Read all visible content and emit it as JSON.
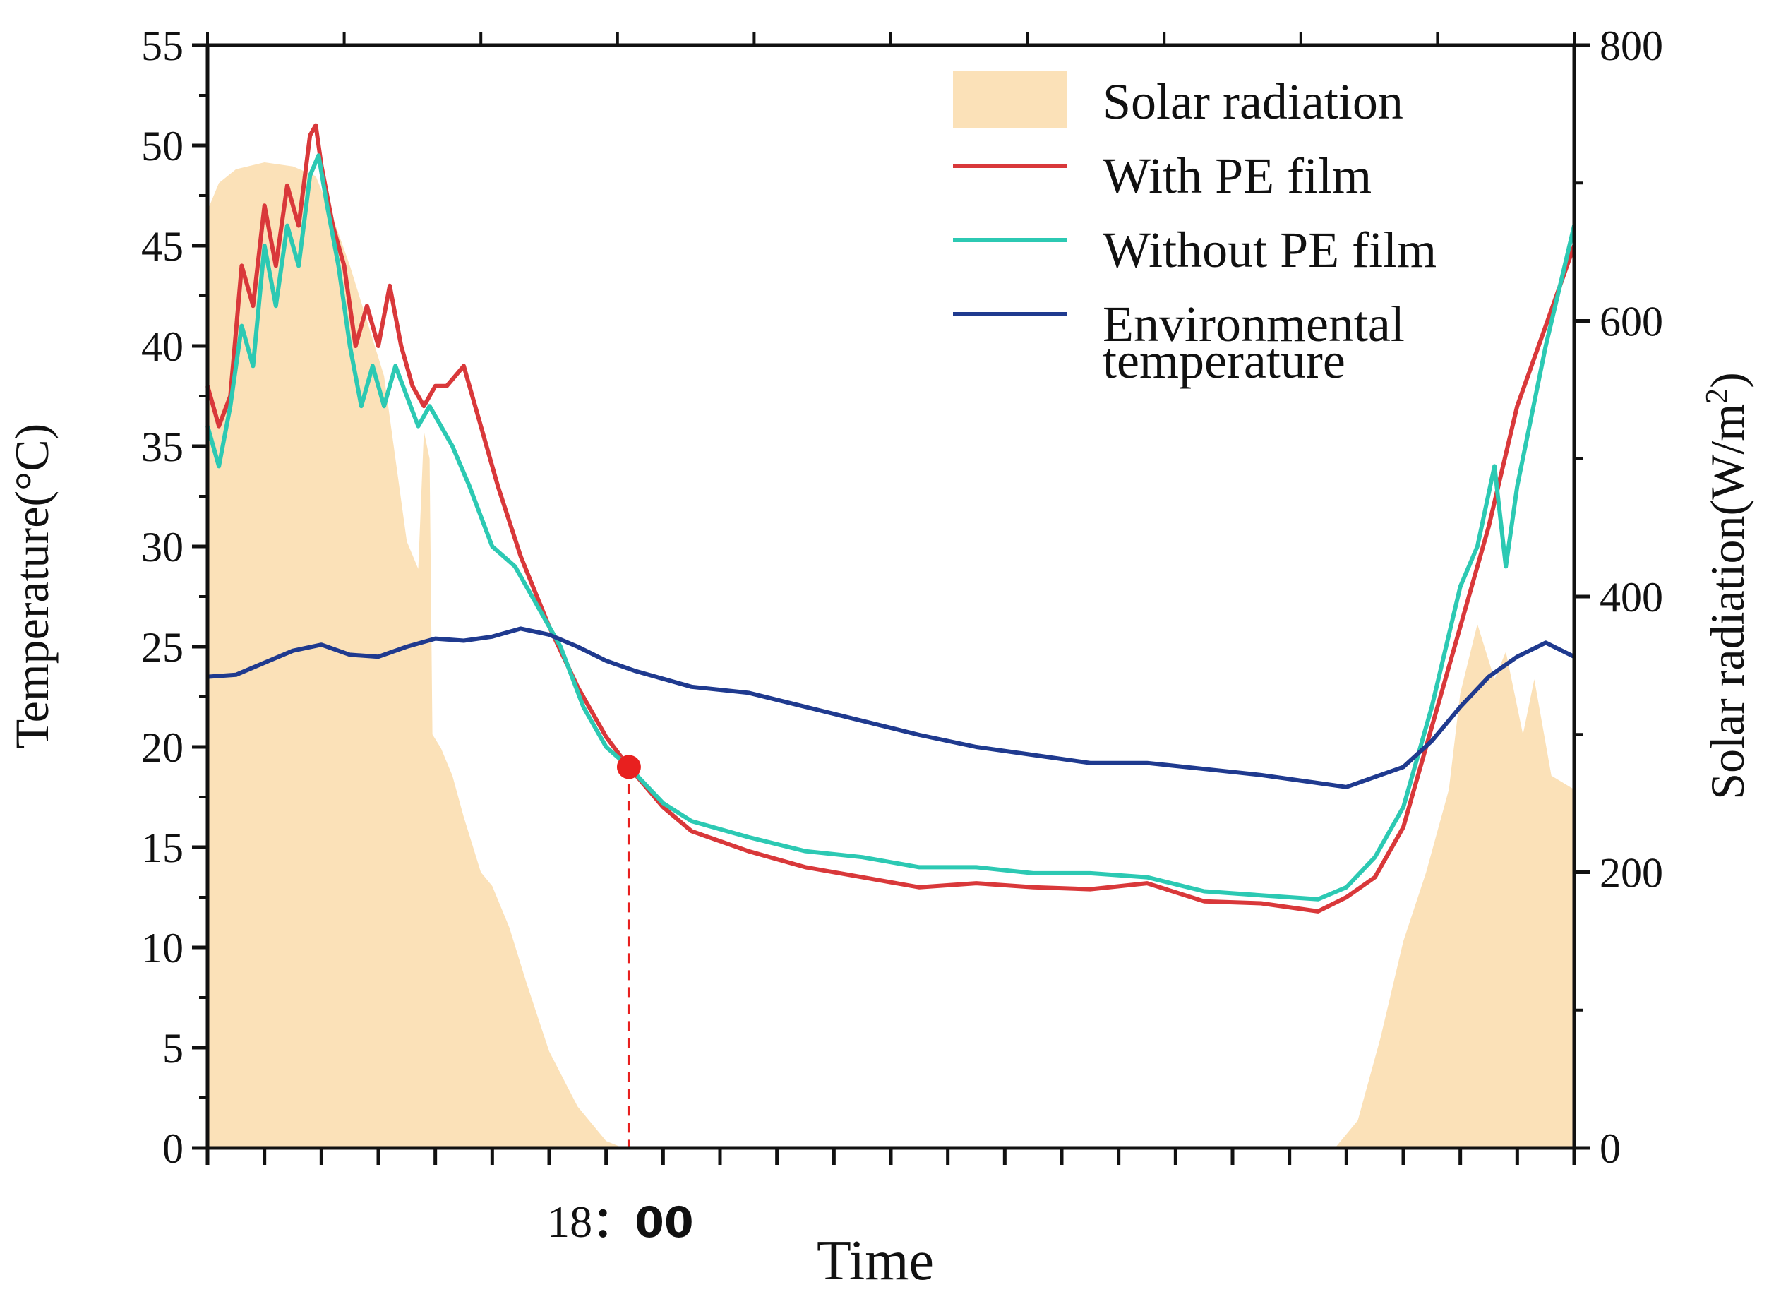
{
  "chart_data": {
    "type": "line",
    "title": "",
    "xlabel": "Time",
    "ylabel": "Temperature(°C)",
    "y2label": "Solar radiation(W/m²)",
    "ylim": [
      0,
      55
    ],
    "y2lim": [
      0,
      800
    ],
    "y_ticks": [
      0,
      5,
      10,
      15,
      20,
      25,
      30,
      35,
      40,
      45,
      50,
      55
    ],
    "y2_ticks": [
      0,
      200,
      400,
      600,
      800
    ],
    "x_units": "hours since start (start ≈ 11:00)",
    "xlim": [
      0,
      24
    ],
    "x_tick_labels": [
      {
        "x": 7.4,
        "text": "18",
        "sep": "：",
        "suffix": "00"
      }
    ],
    "legend": {
      "placement": "top-right",
      "entries": [
        {
          "label": "Solar radiation",
          "kind": "area",
          "color": "#fbe1b8"
        },
        {
          "label": "With PE film",
          "kind": "line",
          "color": "#d9383a"
        },
        {
          "label": "Without PE film",
          "kind": "line",
          "color": "#2cc9b3"
        },
        {
          "label": "Environmental temperature",
          "lines": [
            "Environmental",
            "temperature"
          ],
          "kind": "line",
          "color": "#1f3a8f"
        }
      ]
    },
    "annotation": {
      "label": "intersection point",
      "x": 7.4,
      "y": 19.0,
      "color": "#e8201f",
      "style": "dashed vertical line to x-axis"
    },
    "series": [
      {
        "name": "Solar radiation",
        "axis": "right",
        "type": "area",
        "color": "#fbe1b8",
        "points": [
          [
            0,
            680
          ],
          [
            0.2,
            700
          ],
          [
            0.5,
            710
          ],
          [
            1,
            715
          ],
          [
            1.5,
            712
          ],
          [
            1.9,
            705
          ],
          [
            2.2,
            675
          ],
          [
            2.5,
            640
          ],
          [
            2.8,
            600
          ],
          [
            3.1,
            560
          ],
          [
            3.3,
            500
          ],
          [
            3.5,
            440
          ],
          [
            3.7,
            420
          ],
          [
            3.8,
            520
          ],
          [
            3.9,
            500
          ],
          [
            3.95,
            300
          ],
          [
            4.1,
            290
          ],
          [
            4.3,
            270
          ],
          [
            4.5,
            240
          ],
          [
            4.8,
            200
          ],
          [
            5.0,
            190
          ],
          [
            5.3,
            160
          ],
          [
            5.6,
            120
          ],
          [
            6.0,
            70
          ],
          [
            6.5,
            30
          ],
          [
            7.0,
            5
          ],
          [
            7.3,
            0
          ],
          [
            19.8,
            0
          ],
          [
            20.2,
            20
          ],
          [
            20.6,
            80
          ],
          [
            21.0,
            150
          ],
          [
            21.4,
            200
          ],
          [
            21.8,
            260
          ],
          [
            22.0,
            330
          ],
          [
            22.3,
            380
          ],
          [
            22.6,
            340
          ],
          [
            22.8,
            360
          ],
          [
            23.1,
            300
          ],
          [
            23.3,
            340
          ],
          [
            23.6,
            270
          ],
          [
            24,
            260
          ]
        ]
      },
      {
        "name": "With PE film",
        "axis": "left",
        "type": "line",
        "color": "#d9383a",
        "points": [
          [
            0,
            38
          ],
          [
            0.2,
            36
          ],
          [
            0.4,
            37.5
          ],
          [
            0.6,
            44
          ],
          [
            0.8,
            42
          ],
          [
            1.0,
            47
          ],
          [
            1.2,
            44
          ],
          [
            1.4,
            48
          ],
          [
            1.6,
            46
          ],
          [
            1.8,
            50.5
          ],
          [
            1.9,
            51
          ],
          [
            2.0,
            49
          ],
          [
            2.2,
            46
          ],
          [
            2.4,
            44
          ],
          [
            2.6,
            40
          ],
          [
            2.8,
            42
          ],
          [
            3.0,
            40
          ],
          [
            3.2,
            43
          ],
          [
            3.4,
            40
          ],
          [
            3.6,
            38
          ],
          [
            3.8,
            37
          ],
          [
            4.0,
            38
          ],
          [
            4.2,
            38
          ],
          [
            4.5,
            39
          ],
          [
            4.8,
            36
          ],
          [
            5.1,
            33
          ],
          [
            5.5,
            29.5
          ],
          [
            6.0,
            26
          ],
          [
            6.5,
            23
          ],
          [
            7.0,
            20.5
          ],
          [
            7.4,
            19.0
          ],
          [
            8.0,
            17
          ],
          [
            8.5,
            15.8
          ],
          [
            9.5,
            14.8
          ],
          [
            10.5,
            14
          ],
          [
            11.5,
            13.5
          ],
          [
            12.5,
            13
          ],
          [
            13.5,
            13.2
          ],
          [
            14.5,
            13
          ],
          [
            15.5,
            12.9
          ],
          [
            16.5,
            13.2
          ],
          [
            17.5,
            12.3
          ],
          [
            18.5,
            12.2
          ],
          [
            19.5,
            11.8
          ],
          [
            20.0,
            12.5
          ],
          [
            20.5,
            13.5
          ],
          [
            21.0,
            16
          ],
          [
            21.5,
            21
          ],
          [
            22.0,
            26
          ],
          [
            22.5,
            31
          ],
          [
            23.0,
            37
          ],
          [
            23.5,
            41
          ],
          [
            24,
            45
          ]
        ]
      },
      {
        "name": "Without PE film",
        "axis": "left",
        "type": "line",
        "color": "#2cc9b3",
        "points": [
          [
            0,
            36
          ],
          [
            0.2,
            34
          ],
          [
            0.4,
            37
          ],
          [
            0.6,
            41
          ],
          [
            0.8,
            39
          ],
          [
            1.0,
            45
          ],
          [
            1.2,
            42
          ],
          [
            1.4,
            46
          ],
          [
            1.6,
            44
          ],
          [
            1.8,
            48.5
          ],
          [
            1.95,
            49.5
          ],
          [
            2.1,
            47
          ],
          [
            2.3,
            44
          ],
          [
            2.5,
            40
          ],
          [
            2.7,
            37
          ],
          [
            2.9,
            39
          ],
          [
            3.1,
            37
          ],
          [
            3.3,
            39
          ],
          [
            3.5,
            37.5
          ],
          [
            3.7,
            36
          ],
          [
            3.9,
            37
          ],
          [
            4.1,
            36
          ],
          [
            4.3,
            35
          ],
          [
            4.6,
            33
          ],
          [
            5.0,
            30
          ],
          [
            5.4,
            29
          ],
          [
            5.8,
            27
          ],
          [
            6.2,
            25
          ],
          [
            6.6,
            22
          ],
          [
            7.0,
            20
          ],
          [
            7.4,
            19.0
          ],
          [
            8.0,
            17.2
          ],
          [
            8.5,
            16.3
          ],
          [
            9.5,
            15.5
          ],
          [
            10.5,
            14.8
          ],
          [
            11.5,
            14.5
          ],
          [
            12.5,
            14
          ],
          [
            13.5,
            14
          ],
          [
            14.5,
            13.7
          ],
          [
            15.5,
            13.7
          ],
          [
            16.5,
            13.5
          ],
          [
            17.5,
            12.8
          ],
          [
            18.5,
            12.6
          ],
          [
            19.5,
            12.4
          ],
          [
            20.0,
            13
          ],
          [
            20.5,
            14.5
          ],
          [
            21.0,
            17
          ],
          [
            21.5,
            22
          ],
          [
            22.0,
            28
          ],
          [
            22.3,
            30
          ],
          [
            22.6,
            34
          ],
          [
            22.8,
            29
          ],
          [
            23.0,
            33
          ],
          [
            23.5,
            40
          ],
          [
            24,
            46
          ]
        ]
      },
      {
        "name": "Environmental temperature",
        "axis": "left",
        "type": "line",
        "color": "#1f3a8f",
        "points": [
          [
            0,
            23.5
          ],
          [
            0.5,
            23.6
          ],
          [
            1.0,
            24.2
          ],
          [
            1.5,
            24.8
          ],
          [
            2.0,
            25.1
          ],
          [
            2.5,
            24.6
          ],
          [
            3.0,
            24.5
          ],
          [
            3.5,
            25.0
          ],
          [
            4.0,
            25.4
          ],
          [
            4.5,
            25.3
          ],
          [
            5.0,
            25.5
          ],
          [
            5.5,
            25.9
          ],
          [
            6.0,
            25.6
          ],
          [
            6.5,
            25.0
          ],
          [
            7.0,
            24.3
          ],
          [
            7.5,
            23.8
          ],
          [
            8.5,
            23
          ],
          [
            9.5,
            22.7
          ],
          [
            10.5,
            22
          ],
          [
            11.5,
            21.3
          ],
          [
            12.5,
            20.6
          ],
          [
            13.5,
            20
          ],
          [
            14.5,
            19.6
          ],
          [
            15.5,
            19.2
          ],
          [
            16.5,
            19.2
          ],
          [
            17.5,
            18.9
          ],
          [
            18.5,
            18.6
          ],
          [
            19.5,
            18.2
          ],
          [
            20.0,
            18.0
          ],
          [
            20.5,
            18.5
          ],
          [
            21.0,
            19
          ],
          [
            21.5,
            20.3
          ],
          [
            22.0,
            22
          ],
          [
            22.5,
            23.5
          ],
          [
            23.0,
            24.5
          ],
          [
            23.5,
            25.2
          ],
          [
            24,
            24.5
          ]
        ]
      }
    ]
  }
}
